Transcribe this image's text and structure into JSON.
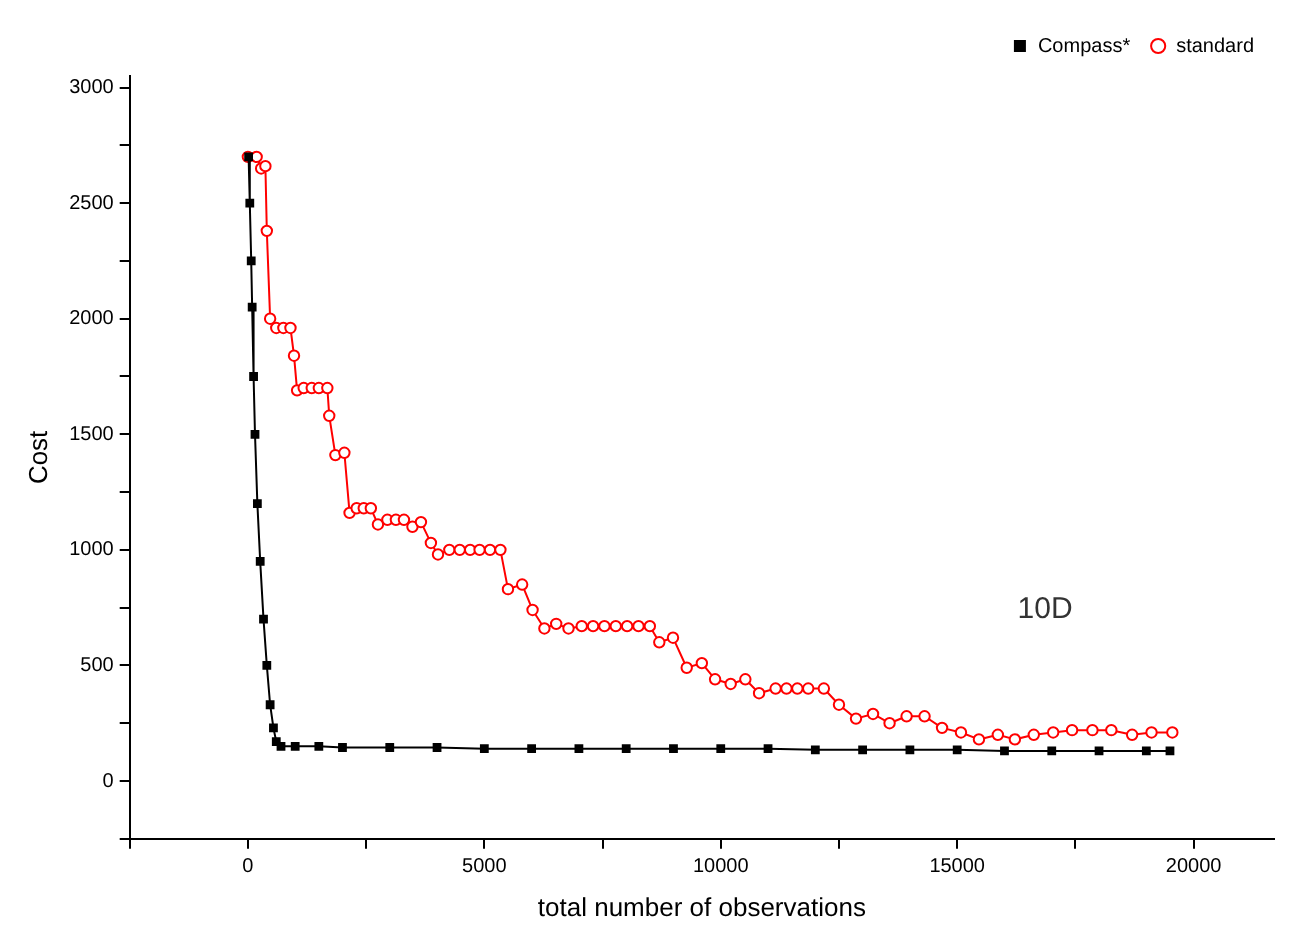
{
  "chart_data": {
    "type": "line",
    "xlabel": "total number of observations",
    "ylabel": "Cost",
    "annotations": [
      "10D"
    ],
    "legend": "top right",
    "grid": false,
    "xlim": [
      -2500,
      21700
    ],
    "xticks": [
      {
        "value": -2500,
        "label": null
      },
      0,
      {
        "value": 2500,
        "label": null
      },
      5000,
      {
        "value": 7500,
        "label": null
      },
      10000,
      {
        "value": 12500,
        "label": null
      },
      15000,
      {
        "value": 17500,
        "label": null
      },
      20000
    ],
    "ylim": [
      -250,
      3050
    ],
    "yticks": [
      {
        "value": -250,
        "label": null
      },
      0,
      {
        "value": 250,
        "label": null
      },
      500,
      {
        "value": 750,
        "label": null
      },
      1000,
      {
        "value": 1250,
        "label": null
      },
      1500,
      {
        "value": 1750,
        "label": null
      },
      2000,
      {
        "value": 2250,
        "label": null
      },
      2500,
      {
        "value": 2750,
        "label": null
      },
      3000
    ],
    "series": [
      {
        "name": "Compass*",
        "color": "#000000",
        "marker": "square",
        "x": [
          15,
          40,
          70,
          90,
          120,
          150,
          200,
          260,
          330,
          400,
          470,
          540,
          600,
          700,
          1000,
          1500,
          2000,
          3000,
          4000,
          5000,
          6000,
          7000,
          8000,
          9000,
          10000,
          11000,
          12000,
          13000,
          14000,
          15000,
          16000,
          17000,
          18000,
          19000,
          19500
        ],
        "values": [
          2700,
          2500,
          2250,
          2050,
          1750,
          1500,
          1200,
          950,
          700,
          500,
          330,
          230,
          170,
          150,
          150,
          150,
          145,
          145,
          145,
          140,
          140,
          140,
          140,
          140,
          140,
          140,
          135,
          135,
          135,
          135,
          130,
          130,
          130,
          130,
          130
        ]
      },
      {
        "name": "standard",
        "color": "#ff0000",
        "marker": "circle",
        "x": [
          0,
          185,
          280,
          370,
          400,
          470,
          600,
          750,
          900,
          975,
          1040,
          1180,
          1350,
          1500,
          1680,
          1720,
          1850,
          2040,
          2150,
          2300,
          2450,
          2600,
          2750,
          2950,
          3130,
          3300,
          3480,
          3660,
          3870,
          4020,
          4260,
          4480,
          4700,
          4900,
          5120,
          5340,
          5500,
          5800,
          6020,
          6270,
          6520,
          6780,
          7060,
          7300,
          7540,
          7780,
          8020,
          8260,
          8500,
          8700,
          8990,
          9280,
          9600,
          9880,
          10210,
          10520,
          10810,
          11160,
          11390,
          11620,
          11850,
          12180,
          12500,
          12860,
          13220,
          13570,
          13930,
          14310,
          14680,
          15080,
          15460,
          15860,
          16220,
          16620,
          17030,
          17430,
          17860,
          18260,
          18700,
          19110,
          19550
        ],
        "values": [
          2700,
          2700,
          2650,
          2660,
          2380,
          2000,
          1960,
          1960,
          1960,
          1840,
          1690,
          1700,
          1700,
          1700,
          1700,
          1580,
          1410,
          1420,
          1160,
          1180,
          1180,
          1180,
          1110,
          1130,
          1130,
          1130,
          1100,
          1120,
          1030,
          980,
          1000,
          1000,
          1000,
          1000,
          1000,
          1000,
          830,
          850,
          740,
          660,
          680,
          660,
          670,
          670,
          670,
          670,
          670,
          670,
          670,
          600,
          620,
          490,
          510,
          440,
          420,
          440,
          380,
          400,
          400,
          400,
          400,
          400,
          330,
          270,
          290,
          250,
          280,
          280,
          230,
          210,
          180,
          200,
          180,
          200,
          210,
          220,
          220,
          220,
          200,
          210,
          210
        ]
      }
    ]
  }
}
